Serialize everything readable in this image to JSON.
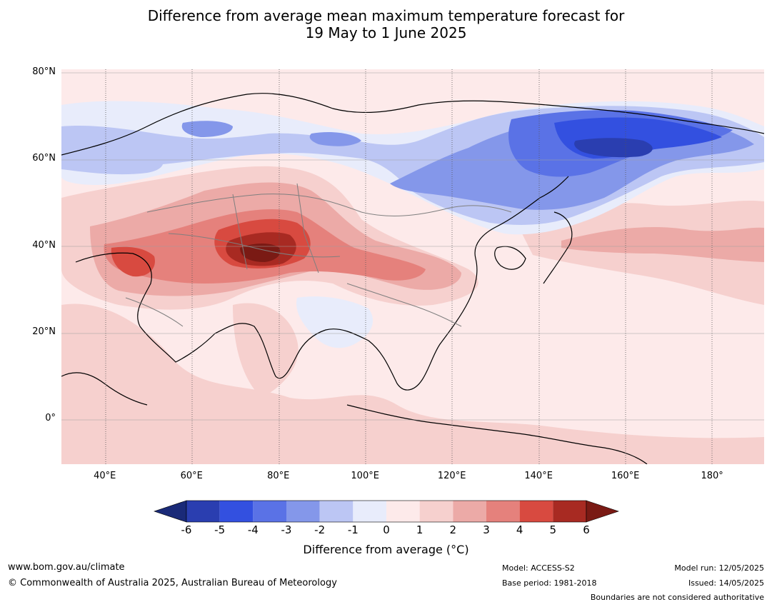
{
  "title_line1": "Difference from average mean maximum temperature forecast for",
  "title_line2": "19 May to 1 June 2025",
  "lat_ticks": [
    {
      "value": 80,
      "label": "80°N"
    },
    {
      "value": 60,
      "label": "60°N"
    },
    {
      "value": 40,
      "label": "40°N"
    },
    {
      "value": 20,
      "label": "20°N"
    },
    {
      "value": 0,
      "label": "0°"
    }
  ],
  "lon_ticks": [
    {
      "value": 40,
      "label": "40°E"
    },
    {
      "value": 60,
      "label": "60°E"
    },
    {
      "value": 80,
      "label": "80°E"
    },
    {
      "value": 100,
      "label": "100°E"
    },
    {
      "value": 120,
      "label": "120°E"
    },
    {
      "value": 140,
      "label": "140°E"
    },
    {
      "value": 160,
      "label": "160°E"
    },
    {
      "value": 180,
      "label": "180°"
    }
  ],
  "colorbar": {
    "label": "Difference from average (°C)",
    "ticks": [
      "-6",
      "-5",
      "-4",
      "-3",
      "-2",
      "-1",
      "0",
      "1",
      "2",
      "3",
      "4",
      "5",
      "6"
    ],
    "colors": [
      "#1a2a78",
      "#2a3eb0",
      "#3350e0",
      "#5a72e6",
      "#8497ea",
      "#bcc6f4",
      "#e8ecfb",
      "#fdeaea",
      "#f6d0ce",
      "#ecaaa7",
      "#e5817c",
      "#d84a40",
      "#a82a22",
      "#7a1a14"
    ]
  },
  "footer": {
    "website": "www.bom.gov.au/climate",
    "copyright": "© Commonwealth of Australia 2025, Australian Bureau of Meteorology",
    "model": "Model: ACCESS-S2",
    "base_period": "Base period: 1981-2018",
    "model_run": "Model run: 12/05/2025",
    "issued": "Issued: 14/05/2025",
    "boundaries": "Boundaries are not considered authoritative"
  }
}
